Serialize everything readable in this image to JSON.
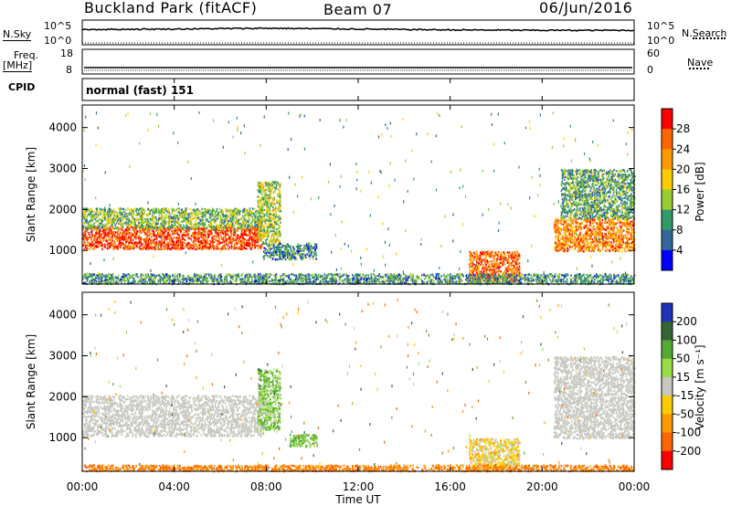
{
  "header": {
    "site": "Buckland Park (fitACF)",
    "beam": "Beam 07",
    "date": "06/Jun/2016"
  },
  "top_panels": {
    "nsky_label": "N.Sky",
    "nsky_ticks": [
      "10^5",
      "10^0"
    ],
    "nsearch_label": "N.Search",
    "nsearch_ticks": [
      "10^5",
      "10^0"
    ],
    "freq_label": "Freq.",
    "freq_unit": "[MHz]",
    "freq_ticks": [
      "18",
      "8"
    ],
    "nave_label": "Nave",
    "nave_ticks": [
      "60",
      "0"
    ],
    "cpid_label": "CPID",
    "cpid_value": "normal (fast) 151"
  },
  "axes": {
    "xlabel": "Time UT",
    "xticks": [
      "00:00",
      "04:00",
      "08:00",
      "12:00",
      "16:00",
      "20:00",
      "00:00"
    ],
    "ylabel": "Slant Range [km]",
    "yticks": [
      "4000",
      "3000",
      "2000",
      "1000"
    ]
  },
  "power_scale": {
    "label": "Power [dB]",
    "ticks": [
      "28",
      "24",
      "20",
      "16",
      "12",
      "8",
      "4"
    ],
    "colors": [
      "#ff0000",
      "#ff6600",
      "#ff9900",
      "#ffcc00",
      "#99cc33",
      "#339966",
      "#336699",
      "#0000ff"
    ]
  },
  "velocity_scale": {
    "label": "Velocity [m s⁻¹]",
    "ticks": [
      "200",
      "100",
      "50",
      "15",
      "-15",
      "-50",
      "-100",
      "-200"
    ],
    "colors": [
      "#2233bb",
      "#336633",
      "#55aa33",
      "#99dd44",
      "#c8c8c0",
      "#ffcc00",
      "#ff9900",
      "#ff6600",
      "#ff0000"
    ]
  },
  "chart_data": [
    {
      "type": "heatmap",
      "title": "",
      "xlabel": "Time UT",
      "ylabel": "Slant Range [km]",
      "xlim": [
        0,
        24
      ],
      "ylim": [
        180,
        4550
      ],
      "colorbar": "Power [dB]",
      "colorbar_range": [
        0,
        30
      ],
      "regions": [
        {
          "t0": 0,
          "t1": 7.8,
          "r0": 1050,
          "r1": 1600,
          "level": 26
        },
        {
          "t0": 0,
          "t1": 7.8,
          "r0": 1550,
          "r1": 2050,
          "level": 12
        },
        {
          "t0": 7.6,
          "t1": 8.6,
          "r0": 1200,
          "r1": 2700,
          "level": 14
        },
        {
          "t0": 7.8,
          "t1": 10.2,
          "r0": 800,
          "r1": 1200,
          "level": 8
        },
        {
          "t0": 16.8,
          "t1": 19.0,
          "r0": 250,
          "r1": 1000,
          "level": 24
        },
        {
          "t0": 20.5,
          "t1": 24,
          "r0": 1000,
          "r1": 1800,
          "level": 22
        },
        {
          "t0": 20.8,
          "t1": 24,
          "r0": 1800,
          "r1": 3000,
          "level": 10
        },
        {
          "t0": 0,
          "t1": 24,
          "r0": 200,
          "r1": 450,
          "level": 9
        }
      ]
    },
    {
      "type": "heatmap",
      "title": "",
      "xlabel": "Time UT",
      "ylabel": "Slant Range [km]",
      "xlim": [
        0,
        24
      ],
      "ylim": [
        180,
        4550
      ],
      "colorbar": "Velocity [m s⁻¹]",
      "colorbar_range": [
        -250,
        250
      ],
      "regions": [
        {
          "t0": 0,
          "t1": 7.8,
          "r0": 1050,
          "r1": 2050,
          "level": 0
        },
        {
          "t0": 7.6,
          "t1": 8.6,
          "r0": 1200,
          "r1": 2700,
          "level": 40
        },
        {
          "t0": 9.0,
          "t1": 10.2,
          "r0": 800,
          "r1": 1100,
          "level": 60
        },
        {
          "t0": 16.8,
          "t1": 19.0,
          "r0": 250,
          "r1": 1000,
          "level": -20
        },
        {
          "t0": 20.5,
          "t1": 24,
          "r0": 1000,
          "r1": 3000,
          "level": 0
        },
        {
          "t0": 0,
          "t1": 24,
          "r0": 200,
          "r1": 350,
          "level": -100
        }
      ]
    },
    {
      "type": "line",
      "title": "",
      "series": [
        {
          "name": "N.Sky",
          "values": [
            3.2,
            3.3,
            3.5,
            3.3,
            3.1,
            3.0,
            3.0
          ]
        },
        {
          "name": "Freq.",
          "values": [
            12,
            12,
            12,
            12,
            12,
            12,
            12
          ]
        }
      ],
      "x": [
        0,
        4,
        8,
        12,
        16,
        20,
        24
      ]
    }
  ]
}
